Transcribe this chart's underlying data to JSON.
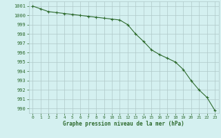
{
  "x": [
    0,
    1,
    2,
    3,
    4,
    5,
    6,
    7,
    8,
    9,
    10,
    11,
    12,
    13,
    14,
    15,
    16,
    17,
    18,
    19,
    20,
    21,
    22,
    23
  ],
  "y": [
    1001.0,
    1000.7,
    1000.4,
    1000.3,
    1000.2,
    1000.1,
    1000.0,
    999.9,
    999.8,
    999.7,
    999.6,
    999.5,
    999.0,
    998.0,
    997.2,
    996.3,
    995.8,
    995.4,
    995.0,
    994.2,
    993.0,
    992.0,
    991.2,
    989.8
  ],
  "line_color": "#2d6a2d",
  "marker": "+",
  "marker_color": "#2d6a2d",
  "bg_color": "#d4f0f0",
  "grid_color": "#b0c8c8",
  "xlabel": "Graphe pression niveau de la mer (hPa)",
  "xlabel_color": "#2d6a2d",
  "tick_color": "#2d6a2d",
  "ylim": [
    989.5,
    1001.5
  ],
  "xlim": [
    -0.5,
    23.5
  ],
  "yticks": [
    990,
    991,
    992,
    993,
    994,
    995,
    996,
    997,
    998,
    999,
    1000,
    1001
  ],
  "xticks": [
    0,
    1,
    2,
    3,
    4,
    5,
    6,
    7,
    8,
    9,
    10,
    11,
    12,
    13,
    14,
    15,
    16,
    17,
    18,
    19,
    20,
    21,
    22,
    23
  ]
}
